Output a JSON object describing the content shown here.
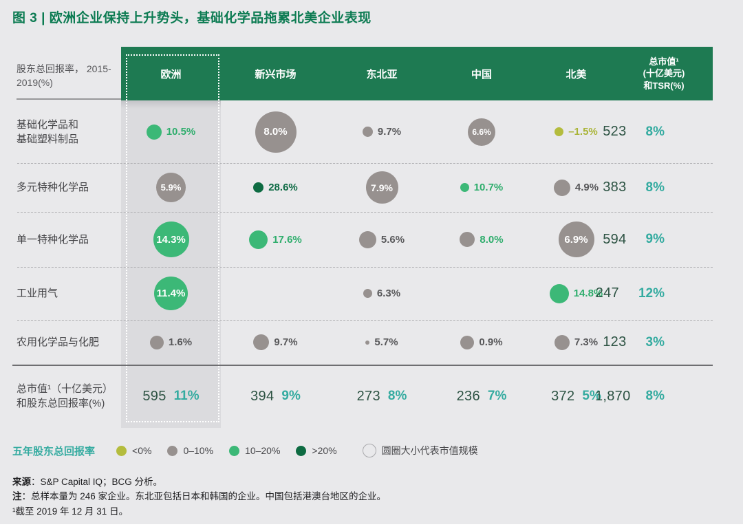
{
  "title": "图 3 | 欧洲企业保持上升势头，基础化学品拖累北美企业表现",
  "header": {
    "row_axis_label_line1": "股东总回报率，",
    "row_axis_label_line2": "2015-2019(%)",
    "value_header_lines": [
      "总市值¹",
      "(十亿美元)",
      "和TSR(%)"
    ]
  },
  "colors": {
    "header_green": "#1E7A52",
    "title_green": "#0C7B52",
    "teal_accent": "#34ABA0",
    "cap_green": "#2D5343",
    "bubble_neg": "#B4BC3D",
    "bubble_low": "#97918F",
    "bubble_mid": "#3CB877",
    "bubble_high": "#0E6B42",
    "europe_highlight": "#DBDBDE",
    "page_bg": "#E9E9EB"
  },
  "chart_data": {
    "type": "bubble-table",
    "title": "图 3 | 欧洲企业保持上升势头，基础化学品拖累北美企业表现",
    "unit_note": "股东总回报率，2015-2019(%)；圆圈大小代表市值规模",
    "columns": [
      "欧洲",
      "新兴市场",
      "东北亚",
      "中国",
      "北美"
    ],
    "highlighted_column": "欧洲",
    "value_column_header": "总市值¹(十亿美元)和TSR(%)",
    "rows": [
      {
        "label_lines": [
          "基础化学品和",
          "基础塑料制品"
        ],
        "cells": [
          {
            "value": "10.5%",
            "cat": "mid",
            "d": 22,
            "text": "out"
          },
          {
            "value": "8.0%",
            "cat": "low",
            "d": 60,
            "text": "in"
          },
          {
            "value": "9.7%",
            "cat": "low",
            "d": 15,
            "text": "out"
          },
          {
            "value": "6.6%",
            "cat": "low",
            "d": 40,
            "text": "in"
          },
          {
            "value": "–1.5%",
            "cat": "neg",
            "d": 13,
            "text": "out"
          }
        ],
        "cap": "523",
        "tsr": "8%"
      },
      {
        "label_lines": [
          "多元特种化学品"
        ],
        "cells": [
          {
            "value": "5.9%",
            "cat": "low",
            "d": 43,
            "text": "in"
          },
          {
            "value": "28.6%",
            "cat": "high",
            "d": 15,
            "text": "out"
          },
          {
            "value": "7.9%",
            "cat": "low",
            "d": 47,
            "text": "in"
          },
          {
            "value": "10.7%",
            "cat": "mid",
            "d": 13,
            "text": "out"
          },
          {
            "value": "4.9%",
            "cat": "low",
            "d": 24,
            "text": "out"
          }
        ],
        "cap": "383",
        "tsr": "8%"
      },
      {
        "label_lines": [
          "单一特种化学品"
        ],
        "cells": [
          {
            "value": "14.3%",
            "cat": "mid",
            "d": 52,
            "text": "in"
          },
          {
            "value": "17.6%",
            "cat": "mid",
            "d": 27,
            "text": "out"
          },
          {
            "value": "5.6%",
            "cat": "low",
            "d": 25,
            "text": "out"
          },
          {
            "value": "8.0%",
            "cat": "low",
            "d": 22,
            "text": "out",
            "text_cat": "mid"
          },
          {
            "value": "6.9%",
            "cat": "low",
            "d": 52,
            "text": "in"
          }
        ],
        "cap": "594",
        "tsr": "9%"
      },
      {
        "label_lines": [
          "工业用气"
        ],
        "cells": [
          {
            "value": "11.4%",
            "cat": "mid",
            "d": 49,
            "text": "in"
          },
          null,
          {
            "value": "6.3%",
            "cat": "low",
            "d": 13,
            "text": "out"
          },
          null,
          {
            "value": "14.8%",
            "cat": "mid",
            "d": 28,
            "text": "out"
          }
        ],
        "cap": "247",
        "tsr": "12%"
      },
      {
        "label_lines": [
          "农用化学品与化肥"
        ],
        "cells": [
          {
            "value": "1.6%",
            "cat": "low",
            "d": 20,
            "text": "out"
          },
          {
            "value": "9.7%",
            "cat": "low",
            "d": 23,
            "text": "out"
          },
          {
            "value": "5.7%",
            "cat": "low",
            "d": 6,
            "text": "out"
          },
          {
            "value": "0.9%",
            "cat": "low",
            "d": 20,
            "text": "out"
          },
          {
            "value": "7.3%",
            "cat": "low",
            "d": 22,
            "text": "out"
          }
        ],
        "cap": "123",
        "tsr": "3%"
      }
    ],
    "totals": {
      "label_lines": [
        "总市值¹（十亿美元）",
        "和股东总回报率(%)"
      ],
      "cells": [
        {
          "cap": "595",
          "tsr": "11%"
        },
        {
          "cap": "394",
          "tsr": "9%"
        },
        {
          "cap": "273",
          "tsr": "8%"
        },
        {
          "cap": "236",
          "tsr": "7%"
        },
        {
          "cap": "372",
          "tsr": "5%"
        }
      ],
      "overall": {
        "cap": "1,870",
        "tsr": "8%"
      }
    },
    "legend": {
      "title": "五年股东总回报率",
      "items": [
        {
          "label": "<0%",
          "cat": "neg"
        },
        {
          "label": "0–10%",
          "cat": "low"
        },
        {
          "label": "10–20%",
          "cat": "mid"
        },
        {
          "label": ">20%",
          "cat": "high"
        }
      ],
      "size_note": "圆圈大小代表市值规模"
    }
  },
  "footnotes": {
    "source_label": "来源",
    "source_text": "：S&P Capital IQ；BCG 分析。",
    "note_label": "注",
    "note_text": "：总样本量为 246 家企业。东北亚包括日本和韩国的企业。中国包括港澳台地区的企业。",
    "footnote_text": "¹截至 2019 年 12 月 31 日。"
  }
}
